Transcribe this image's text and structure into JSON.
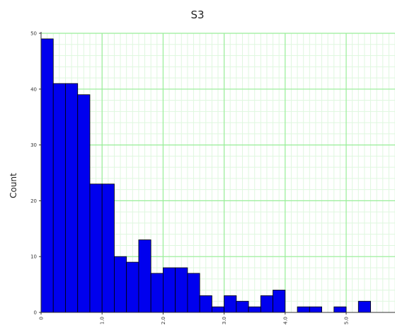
{
  "chart_data": {
    "type": "bar",
    "title": "S3",
    "xlabel": "",
    "ylabel": "Count",
    "xlim": [
      0,
      5.8
    ],
    "ylim": [
      0,
      50
    ],
    "bin_width": 0.2,
    "bins": [
      {
        "x0": 0.0,
        "count": 49
      },
      {
        "x0": 0.2,
        "count": 41
      },
      {
        "x0": 0.4,
        "count": 41
      },
      {
        "x0": 0.6,
        "count": 39
      },
      {
        "x0": 0.8,
        "count": 23
      },
      {
        "x0": 1.0,
        "count": 23
      },
      {
        "x0": 1.2,
        "count": 10
      },
      {
        "x0": 1.4,
        "count": 9
      },
      {
        "x0": 1.6,
        "count": 13
      },
      {
        "x0": 1.8,
        "count": 7
      },
      {
        "x0": 2.0,
        "count": 8
      },
      {
        "x0": 2.2,
        "count": 8
      },
      {
        "x0": 2.4,
        "count": 7
      },
      {
        "x0": 2.6,
        "count": 3
      },
      {
        "x0": 2.8,
        "count": 1
      },
      {
        "x0": 3.0,
        "count": 3
      },
      {
        "x0": 3.2,
        "count": 2
      },
      {
        "x0": 3.4,
        "count": 1
      },
      {
        "x0": 3.6,
        "count": 3
      },
      {
        "x0": 3.8,
        "count": 4
      },
      {
        "x0": 4.0,
        "count": 0
      },
      {
        "x0": 4.2,
        "count": 1
      },
      {
        "x0": 4.4,
        "count": 1
      },
      {
        "x0": 4.6,
        "count": 0
      },
      {
        "x0": 4.8,
        "count": 1
      },
      {
        "x0": 5.0,
        "count": 0
      },
      {
        "x0": 5.2,
        "count": 2
      }
    ],
    "x_ticks": [
      "0",
      "1.0",
      "2.0",
      "3.0",
      "4.0",
      "5.0"
    ],
    "y_ticks": [
      "0",
      "10",
      "20",
      "30",
      "40",
      "50"
    ],
    "grid": true,
    "colors": {
      "bar_fill": "#0000ee",
      "bar_edge": "#000000",
      "major_grid": "#99ee99",
      "minor_grid": "#dff7df"
    }
  }
}
